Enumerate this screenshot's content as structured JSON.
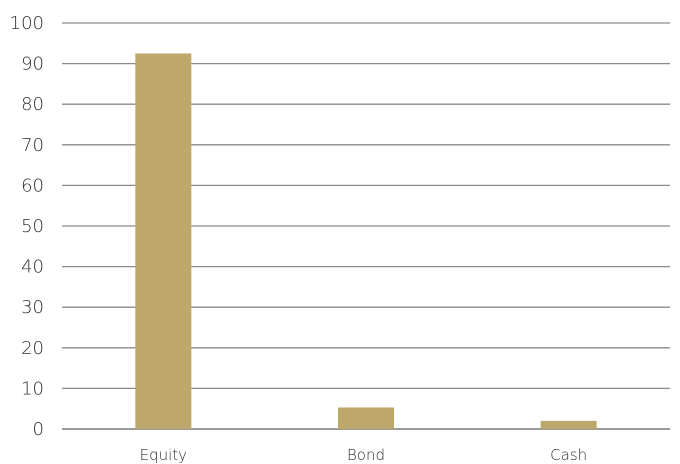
{
  "chart_data": {
    "type": "bar",
    "categories": [
      "Equity",
      "Bond",
      "Cash"
    ],
    "series": [
      {
        "values": [
          92.5,
          5.3,
          2.0
        ],
        "color": "#bda76b"
      }
    ],
    "ylim": [
      0,
      100
    ],
    "yticks": [
      0,
      10,
      20,
      30,
      40,
      50,
      60,
      70,
      80,
      90,
      100
    ],
    "grid": true,
    "legend": "none"
  }
}
